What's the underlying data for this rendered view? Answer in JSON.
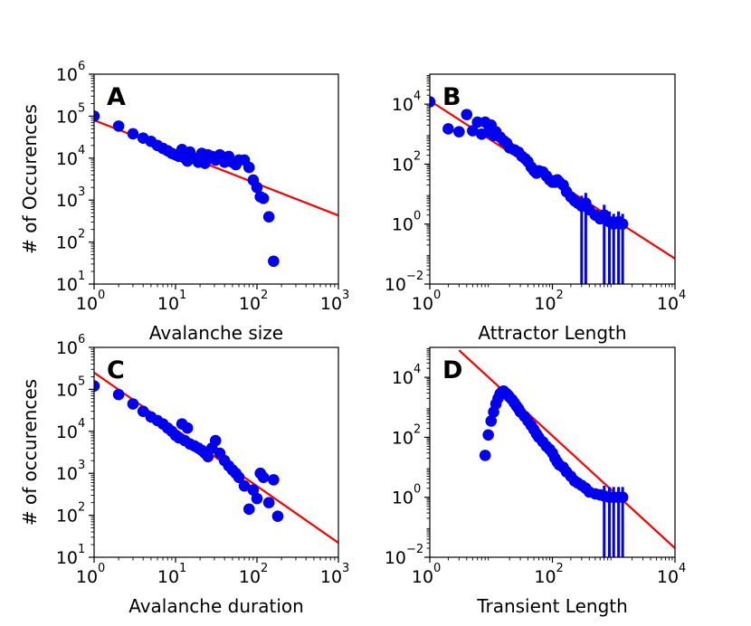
{
  "chart_data": [
    {
      "type": "scatter",
      "panel_label": "A",
      "xscale": "log",
      "yscale": "log",
      "xlim": [
        1,
        1000
      ],
      "ylim": [
        10,
        1000000
      ],
      "xlabel": "Avalanche size",
      "ylabel": "# of Occurences",
      "xticks": [
        {
          "base": "10",
          "exp": "0"
        },
        {
          "base": "10",
          "exp": "1"
        },
        {
          "base": "10",
          "exp": "2"
        },
        {
          "base": "10",
          "exp": "3"
        }
      ],
      "yticks": [
        {
          "base": "10",
          "exp": "1"
        },
        {
          "base": "10",
          "exp": "2"
        },
        {
          "base": "10",
          "exp": "3"
        },
        {
          "base": "10",
          "exp": "4"
        },
        {
          "base": "10",
          "exp": "5"
        },
        {
          "base": "10",
          "exp": "6"
        }
      ],
      "fit": {
        "x": [
          1,
          1000
        ],
        "y": [
          80000,
          430
        ]
      },
      "series": [
        {
          "name": "data",
          "x": [
            1,
            2,
            3,
            4,
            5,
            6,
            7,
            8,
            9,
            10,
            11,
            12,
            13,
            14,
            15,
            17,
            19,
            21,
            23,
            25,
            28,
            31,
            35,
            40,
            45,
            50,
            55,
            60,
            70,
            80,
            90,
            100,
            110,
            120,
            140,
            160
          ],
          "y": [
            100000,
            58000,
            38000,
            30000,
            25000,
            20000,
            17000,
            15000,
            13000,
            12000,
            11000,
            16000,
            10000,
            8500,
            14000,
            10000,
            8000,
            13000,
            7500,
            12000,
            11000,
            9000,
            12000,
            8000,
            11000,
            8000,
            7000,
            9000,
            9000,
            6000,
            3000,
            2000,
            1200,
            1100,
            400,
            35
          ]
        }
      ]
    },
    {
      "type": "scatter",
      "panel_label": "B",
      "xscale": "log",
      "yscale": "log",
      "xlim": [
        1,
        10000
      ],
      "ylim": [
        0.01,
        100000
      ],
      "xlabel": "Attractor Length",
      "ylabel": "",
      "xticks": [
        {
          "base": "10",
          "exp": "0"
        },
        {
          "base": "10",
          "exp": "2"
        },
        {
          "base": "10",
          "exp": "4"
        }
      ],
      "yticks": [
        {
          "base": "10",
          "exp": "−2"
        },
        {
          "base": "10",
          "exp": "0"
        },
        {
          "base": "10",
          "exp": "2"
        },
        {
          "base": "10",
          "exp": "4"
        }
      ],
      "fit": {
        "x": [
          1,
          10000
        ],
        "y": [
          13000,
          0.07
        ]
      },
      "error_bars_x": [
        300,
        350,
        700,
        850,
        1000,
        1200,
        1400
      ],
      "series": [
        {
          "name": "data",
          "x": [
            1,
            2,
            3,
            4,
            5,
            6,
            7,
            8,
            9,
            10,
            11,
            12,
            14,
            16,
            18,
            20,
            24,
            28,
            32,
            36,
            40,
            45,
            50,
            55,
            60,
            70,
            80,
            90,
            100,
            110,
            120,
            130,
            150,
            170,
            200,
            230,
            260,
            300,
            350,
            400,
            500,
            600,
            700,
            850,
            1000,
            1200,
            1400
          ],
          "y": [
            12000,
            1500,
            1200,
            4500,
            1300,
            2500,
            1000,
            2500,
            1200,
            2000,
            900,
            1200,
            800,
            600,
            500,
            350,
            300,
            250,
            180,
            150,
            120,
            80,
            60,
            50,
            60,
            55,
            40,
            30,
            25,
            25,
            30,
            25,
            20,
            12,
            8,
            6,
            5,
            4,
            5,
            3,
            2,
            1.5,
            2,
            1.2,
            1,
            1.2,
            1
          ]
        }
      ]
    },
    {
      "type": "scatter",
      "panel_label": "C",
      "xscale": "log",
      "yscale": "log",
      "xlim": [
        1,
        1000
      ],
      "ylim": [
        10,
        1000000
      ],
      "xlabel": "Avalanche duration",
      "ylabel": "# of occurences",
      "xticks": [
        {
          "base": "10",
          "exp": "0"
        },
        {
          "base": "10",
          "exp": "1"
        },
        {
          "base": "10",
          "exp": "2"
        },
        {
          "base": "10",
          "exp": "3"
        }
      ],
      "yticks": [
        {
          "base": "10",
          "exp": "1"
        },
        {
          "base": "10",
          "exp": "2"
        },
        {
          "base": "10",
          "exp": "3"
        },
        {
          "base": "10",
          "exp": "4"
        },
        {
          "base": "10",
          "exp": "5"
        },
        {
          "base": "10",
          "exp": "6"
        }
      ],
      "fit": {
        "x": [
          1,
          1000
        ],
        "y": [
          250000,
          22
        ]
      },
      "series": [
        {
          "name": "data",
          "x": [
            1,
            2,
            3,
            4,
            5,
            6,
            7,
            8,
            9,
            10,
            11,
            12,
            13,
            14,
            15,
            17,
            19,
            21,
            23,
            25,
            28,
            31,
            35,
            40,
            45,
            50,
            55,
            60,
            70,
            80,
            90,
            100,
            110,
            120,
            140,
            160,
            180
          ],
          "y": [
            120000,
            75000,
            45000,
            30000,
            22000,
            18000,
            15000,
            12000,
            10000,
            8000,
            7000,
            15000,
            6000,
            12000,
            5000,
            4500,
            4000,
            3500,
            3000,
            2500,
            4000,
            6000,
            3000,
            2000,
            1500,
            1200,
            1000,
            800,
            500,
            140,
            400,
            250,
            1000,
            800,
            200,
            700,
            95
          ]
        }
      ]
    },
    {
      "type": "scatter",
      "panel_label": "D",
      "xscale": "log",
      "yscale": "log",
      "xlim": [
        1,
        10000
      ],
      "ylim": [
        0.01,
        100000
      ],
      "xlabel": "Transient Length",
      "ylabel": "",
      "xticks": [
        {
          "base": "10",
          "exp": "0"
        },
        {
          "base": "10",
          "exp": "2"
        },
        {
          "base": "10",
          "exp": "4"
        }
      ],
      "yticks": [
        {
          "base": "10",
          "exp": "−2"
        },
        {
          "base": "10",
          "exp": "0"
        },
        {
          "base": "10",
          "exp": "2"
        },
        {
          "base": "10",
          "exp": "4"
        }
      ],
      "fit": {
        "x": [
          3,
          10000
        ],
        "y": [
          80000,
          0.02
        ]
      },
      "error_bars_x": [
        700,
        850,
        1000,
        1200,
        1400
      ],
      "series": [
        {
          "name": "data",
          "x": [
            8,
            9,
            10,
            11,
            12,
            13,
            14,
            15,
            16,
            17,
            18,
            19,
            20,
            22,
            24,
            26,
            28,
            30,
            35,
            40,
            45,
            50,
            55,
            60,
            70,
            80,
            90,
            100,
            110,
            120,
            130,
            150,
            170,
            200,
            230,
            260,
            300,
            350,
            400,
            500,
            600,
            700,
            850,
            1000,
            1200,
            1400
          ],
          "y": [
            25,
            120,
            350,
            700,
            1300,
            2000,
            2800,
            3300,
            3500,
            3000,
            2800,
            2500,
            2200,
            1800,
            1400,
            1100,
            900,
            700,
            500,
            350,
            250,
            180,
            130,
            100,
            70,
            50,
            40,
            30,
            20,
            15,
            12,
            10,
            7,
            5,
            3.5,
            3,
            2.5,
            2,
            1.5,
            1.3,
            1.2,
            1.1,
            1,
            1,
            1,
            1
          ]
        }
      ]
    }
  ],
  "colors": {
    "points": "#0000ee",
    "fit": "#ff0000",
    "axes": "#000000"
  }
}
